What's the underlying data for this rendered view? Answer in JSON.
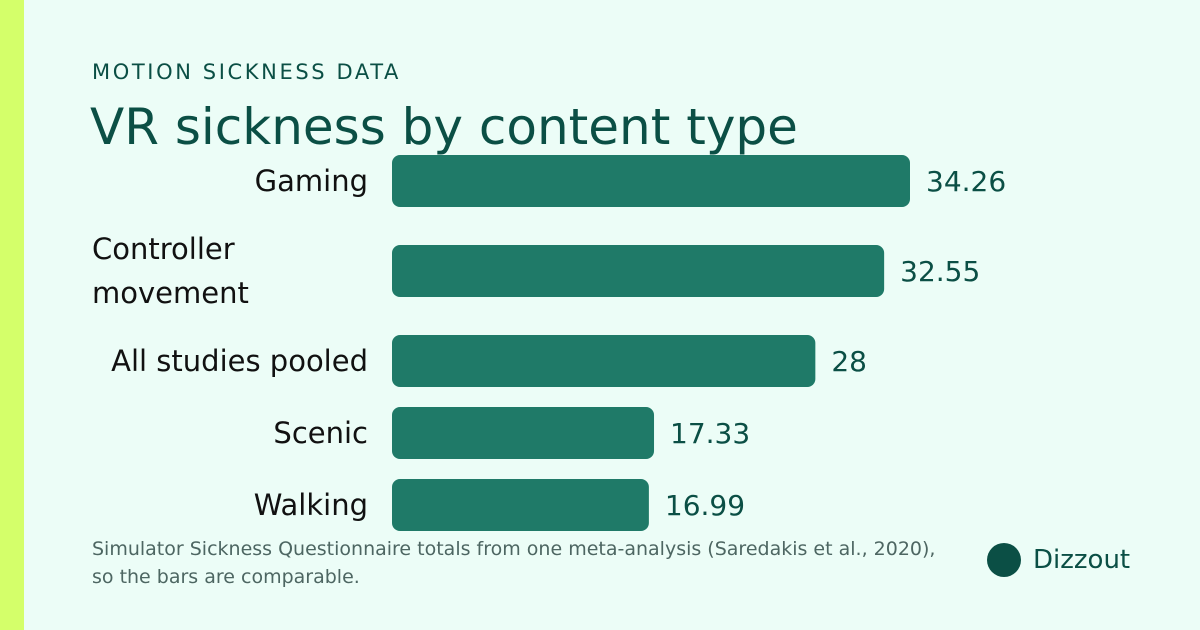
{
  "header": {
    "eyebrow": "MOTION SICKNESS DATA"
  },
  "footnote": "Simulator Sickness Questionnaire totals from one meta-analysis (Saredakis et al., 2020), so the bars are comparable.",
  "colors": {
    "background": "#ecfdf7",
    "accent_bar": "#d4ff6a",
    "bar": "#1f7a68",
    "text_primary": "#0b4f45"
  },
  "brand": {
    "name": "Dizzout"
  },
  "chart_data": {
    "type": "bar",
    "orientation": "horizontal",
    "title": "VR sickness by content type",
    "categories": [
      "Gaming",
      "Controller movement",
      "All studies pooled",
      "Scenic",
      "Walking"
    ],
    "values": [
      34.26,
      32.55,
      28,
      17.33,
      16.99
    ],
    "value_labels": [
      "34.26",
      "32.55",
      "28",
      "17.33",
      "16.99"
    ],
    "xlabel": "",
    "ylabel": "",
    "xlim": [
      0,
      34.26
    ],
    "grid": false
  }
}
